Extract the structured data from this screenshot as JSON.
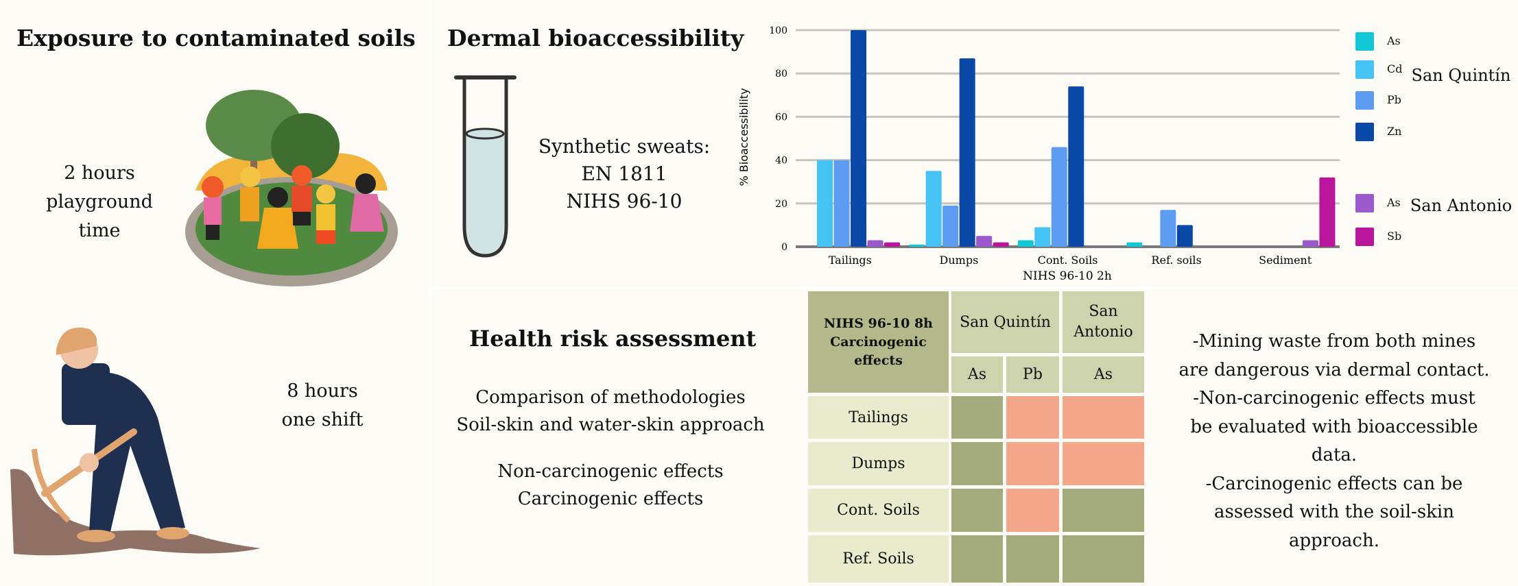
{
  "exposure": {
    "title": "Exposure to contaminated soils",
    "children_lines": [
      "2 hours",
      "playground",
      "time"
    ],
    "worker_lines": [
      "8 hours",
      "one shift"
    ]
  },
  "dermal": {
    "title": "Dermal bioaccessibility",
    "sweat_lines": [
      "Synthetic sweats:",
      "EN 1811",
      "NIHS 96-10"
    ]
  },
  "chart_data": {
    "type": "bar",
    "title": "",
    "xlabel": "NIHS 96-10 2h",
    "ylabel": "% Bioaccessibility",
    "ylim": [
      0,
      100
    ],
    "yticks": [
      0,
      20,
      40,
      60,
      80,
      100
    ],
    "grid": true,
    "legend": "right",
    "categories": [
      "Tailings",
      "Dumps",
      "Cont. Soils",
      "Ref. soils",
      "Sediment"
    ],
    "series": [
      {
        "name": "As",
        "group": "San Quintín",
        "color": "#12c8d6",
        "values": [
          0,
          1,
          3,
          2,
          0
        ]
      },
      {
        "name": "Cd",
        "group": "San Quintín",
        "color": "#45c3f5",
        "values": [
          40,
          35,
          9,
          0,
          0
        ]
      },
      {
        "name": "Pb",
        "group": "San Quintín",
        "color": "#5c9df2",
        "values": [
          40,
          19,
          46,
          17,
          0
        ]
      },
      {
        "name": "Zn",
        "group": "San Quintín",
        "color": "#0a48a8",
        "values": [
          100,
          87,
          74,
          10,
          0
        ]
      },
      {
        "name": "As",
        "group": "San Antonio",
        "color": "#9b59cc",
        "values": [
          3,
          5,
          0,
          0,
          3
        ]
      },
      {
        "name": "Sb",
        "group": "San Antonio",
        "color": "#b8149c",
        "values": [
          2,
          2,
          0,
          0,
          32
        ]
      }
    ],
    "legend_groups": [
      "San Quintín",
      "San Antonio"
    ]
  },
  "health": {
    "title": "Health risk assessment",
    "lines": [
      "Comparison of methodologies",
      "Soil-skin and water-skin approach",
      "Non-carcinogenic effects",
      "Carcinogenic effects"
    ]
  },
  "risk_table": {
    "corner_lines": [
      "NIHS 96-10 8h",
      "Carcinogenic",
      "effects"
    ],
    "sites": [
      "San Quintín",
      "San Antonio"
    ],
    "elements": [
      "As",
      "Pb",
      "As"
    ],
    "rows": [
      {
        "label": "Tailings",
        "risk": [
          "low",
          "high",
          "high"
        ]
      },
      {
        "label": "Dumps",
        "risk": [
          "low",
          "high",
          "high"
        ]
      },
      {
        "label": "Cont. Soils",
        "risk": [
          "low",
          "high",
          "low"
        ]
      },
      {
        "label": "Ref. Soils",
        "risk": [
          "low",
          "low",
          "low"
        ]
      }
    ],
    "colors": {
      "low": "#a3ab7c",
      "high": "#f4a68b"
    }
  },
  "conclusions": {
    "lines": [
      "-Mining waste from both mines",
      "are dangerous via dermal contact.",
      "-Non-carcinogenic effects must",
      "be evaluated with bioaccessible",
      "data.",
      "-Carcinogenic effects can be",
      "assessed with the soil-skin",
      "approach."
    ]
  }
}
